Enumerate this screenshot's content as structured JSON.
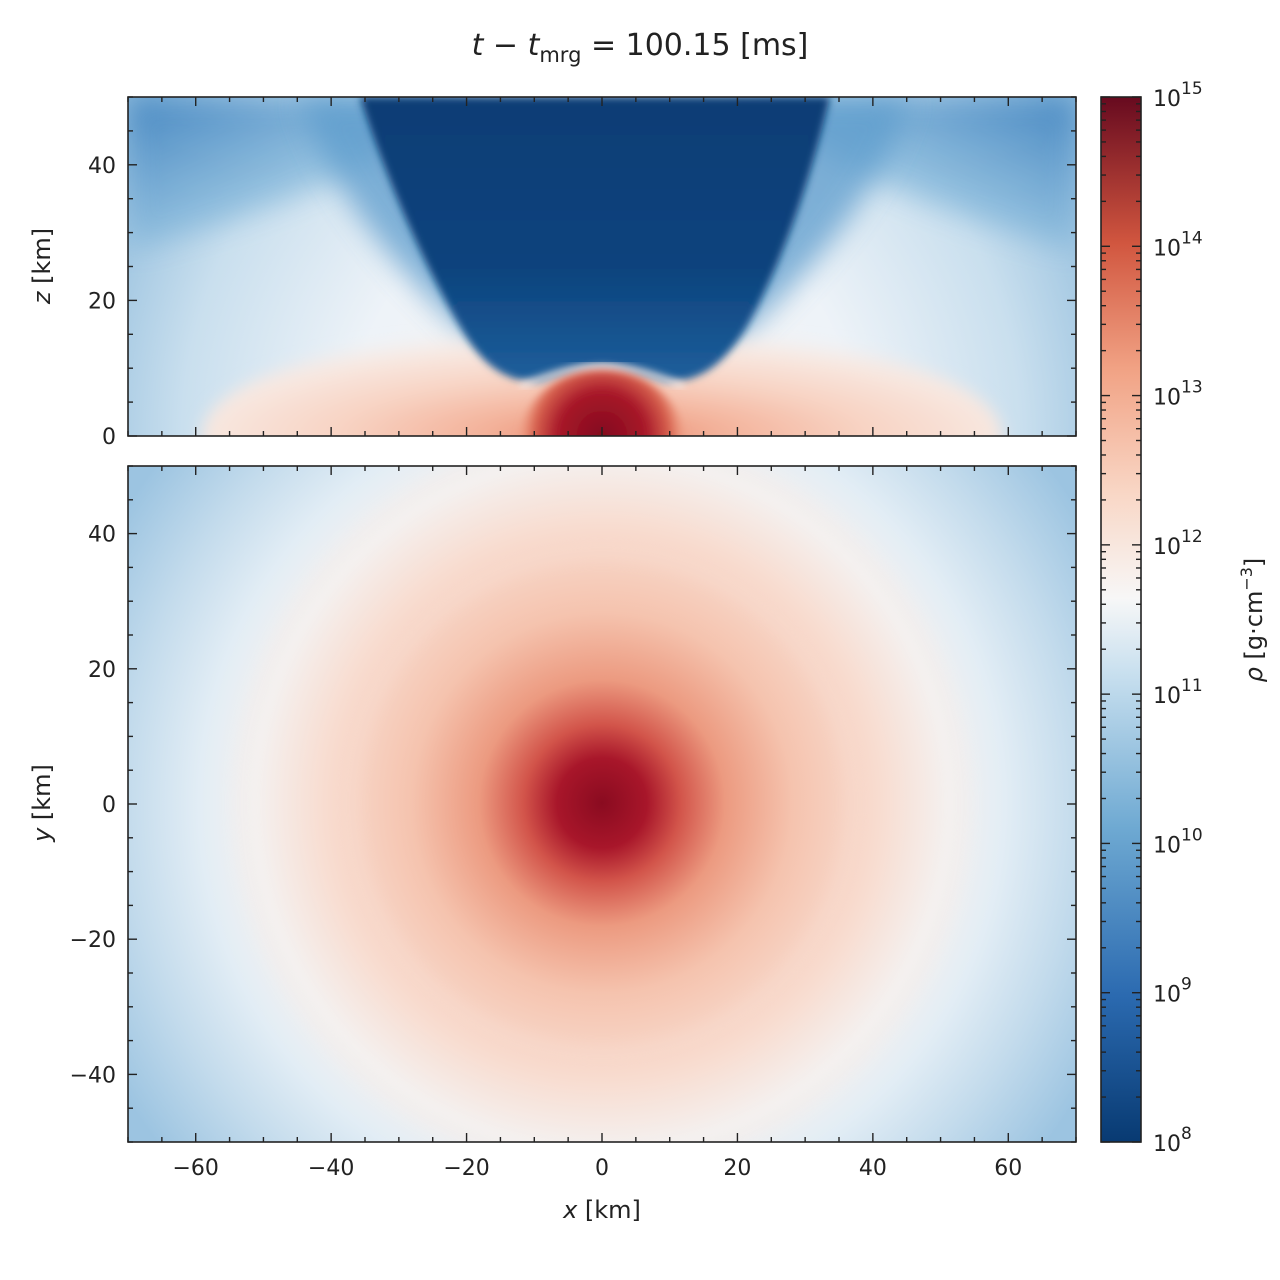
{
  "chart_data": [
    {
      "type": "heatmap",
      "title": "t − t_mrg = 100.15 [ms]",
      "title_parts": {
        "t": "t",
        "minus": " − ",
        "tsub": "t",
        "sub": "mrg",
        "rest": " = 100.15 [ms]"
      },
      "panel": "x-z meridional slice",
      "xlabel": "x [km]",
      "ylabel": "z [km]",
      "ylabel_parts": {
        "var": "z",
        "unit": " [km]"
      },
      "xlim": [
        -70,
        70
      ],
      "ylim": [
        0,
        50
      ],
      "xticks": [
        -60,
        -40,
        -20,
        0,
        20,
        40,
        60
      ],
      "yticks": [
        0,
        20,
        40
      ],
      "ytick_labels": [
        "0",
        "20",
        "40"
      ],
      "grid": false,
      "colormap": "RdBu_r",
      "description_of_field": "log10 density; dense red core at origin up to ~9 km, red torus out to ~55 km below ~12 km, dark blue low-density funnel above |x| < 30 km"
    },
    {
      "type": "heatmap",
      "panel": "x-y equatorial slice",
      "xlabel": "x [km]",
      "xlabel_parts": {
        "var": "x",
        "unit": " [km]"
      },
      "ylabel": "y [km]",
      "ylabel_parts": {
        "var": "y",
        "unit": " [km]"
      },
      "xlim": [
        -70,
        70
      ],
      "ylim": [
        -50,
        50
      ],
      "xticks": [
        -60,
        -40,
        -20,
        0,
        20,
        40,
        60
      ],
      "xtick_labels": [
        "−60",
        "−40",
        "−20",
        "0",
        "20",
        "40",
        "60"
      ],
      "yticks": [
        -40,
        -20,
        0,
        20,
        40
      ],
      "ytick_labels": [
        "−40",
        "−20",
        "0",
        "20",
        "40"
      ],
      "grid": false,
      "colormap": "RdBu_r"
    },
    {
      "type": "colorbar",
      "label": "ρ [g·cm⁻³]",
      "label_parts": {
        "var": "ρ",
        "unit": " [g·cm",
        "exp": "−3",
        "close": "]"
      },
      "scale": "log",
      "range": [
        100000000.0,
        1000000000000000.0
      ],
      "ticks": [
        8,
        9,
        10,
        11,
        12,
        13,
        14,
        15
      ],
      "tick_labels": [
        "10^8",
        "10^9",
        "10^10",
        "10^11",
        "10^12",
        "10^13",
        "10^14",
        "10^15"
      ],
      "colors": {
        "min": "#083a72",
        "low": "#2f74b3",
        "mid_low": "#8fc0de",
        "mid": "#f5f5f5",
        "mid_high": "#f6b99e",
        "high": "#d6604d",
        "max": "#670a1f"
      }
    }
  ]
}
